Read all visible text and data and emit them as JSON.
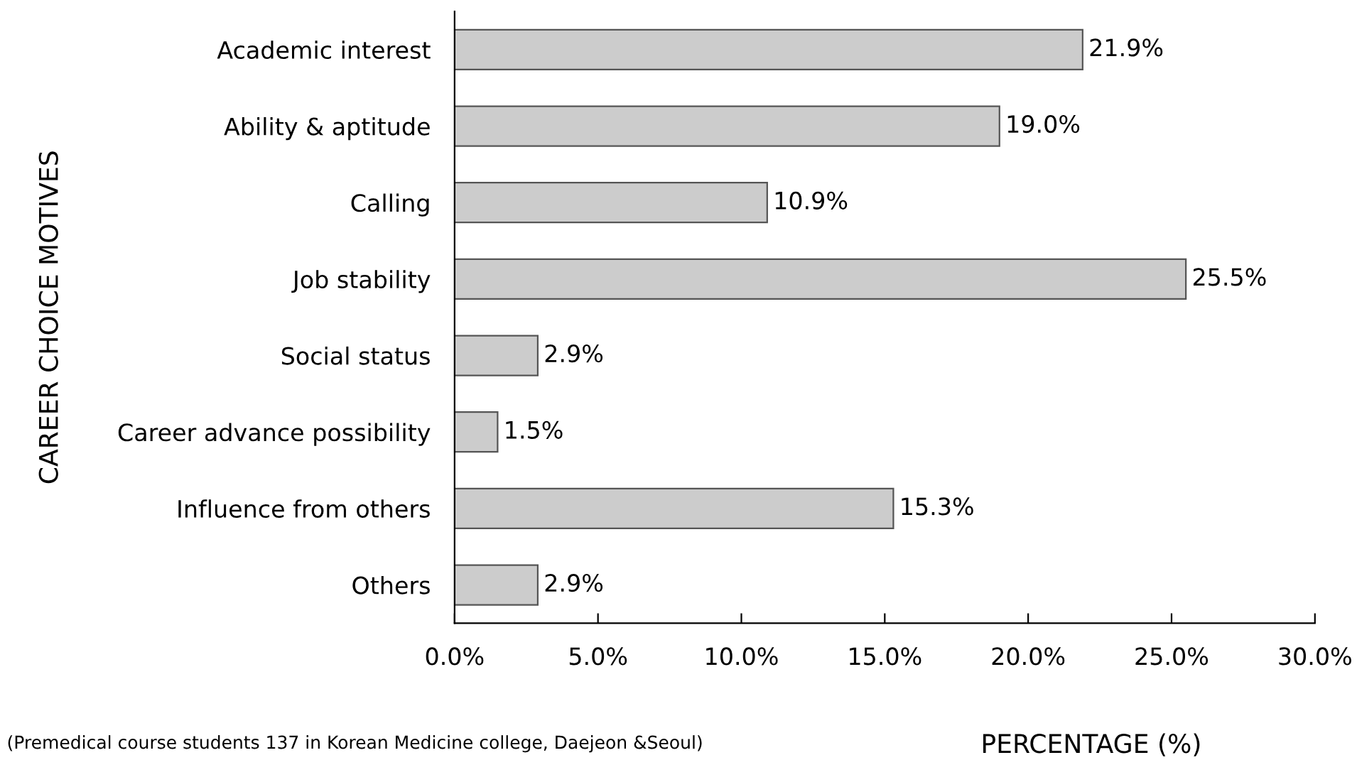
{
  "chart_data": {
    "type": "bar",
    "orientation": "horizontal",
    "categories": [
      "Academic interest",
      "Ability & aptitude",
      "Calling",
      "Job stability",
      "Social status",
      "Career advance possibility",
      "Influence from others",
      "Others"
    ],
    "values": [
      21.9,
      19.0,
      10.9,
      25.5,
      2.9,
      1.5,
      15.3,
      2.9
    ],
    "value_labels": [
      "21.9%",
      "19.0%",
      "10.9%",
      "25.5%",
      "2.9%",
      "1.5%",
      "15.3%",
      "2.9%"
    ],
    "color": "#cccccc",
    "xlim": [
      0,
      30
    ],
    "xticks": [
      {
        "value": 0,
        "label": "0.0%"
      },
      {
        "value": 5,
        "label": "5.0%"
      },
      {
        "value": 10,
        "label": "10.0%"
      },
      {
        "value": 15,
        "label": "15.0%"
      },
      {
        "value": 20,
        "label": "20.0%"
      },
      {
        "value": 25,
        "label": "25.0%"
      },
      {
        "value": 30,
        "label": "30.0%"
      }
    ],
    "xlabel": "PERCENTAGE (%)",
    "ylabel": "CAREER CHOICE MOTIVES",
    "annotations": [
      "(Premedical course students 137 in Korean Medicine college, Daejeon &Seoul)"
    ],
    "grid": false,
    "legend": false
  }
}
